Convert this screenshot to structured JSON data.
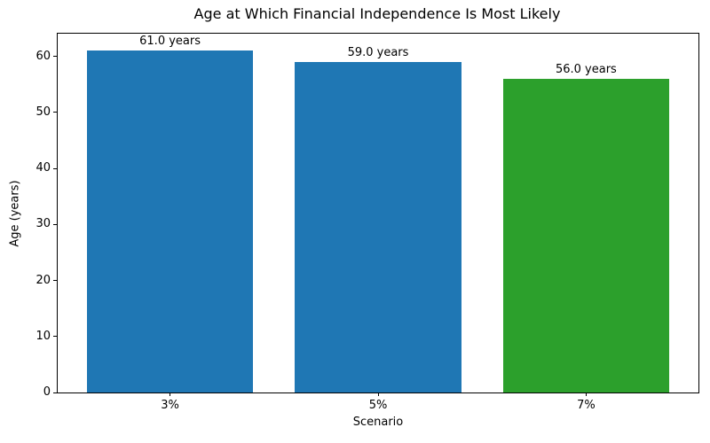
{
  "chart_data": {
    "type": "bar",
    "title": "Age at Which Financial Independence Is Most Likely",
    "xlabel": "Scenario",
    "ylabel": "Age (years)",
    "categories": [
      "3%",
      "5%",
      "7%"
    ],
    "values": [
      61.0,
      59.0,
      56.0
    ],
    "bar_labels": [
      "61.0 years",
      "59.0 years",
      "56.0 years"
    ],
    "bar_colors": [
      "#1f77b4",
      "#1f77b4",
      "#2ca02c"
    ],
    "ylim": [
      0,
      64.05
    ],
    "yticks": [
      0,
      10,
      20,
      30,
      40,
      50,
      60
    ],
    "grid": false,
    "legend": "none",
    "axis_color": "#000000",
    "background_color": "#ffffff"
  }
}
